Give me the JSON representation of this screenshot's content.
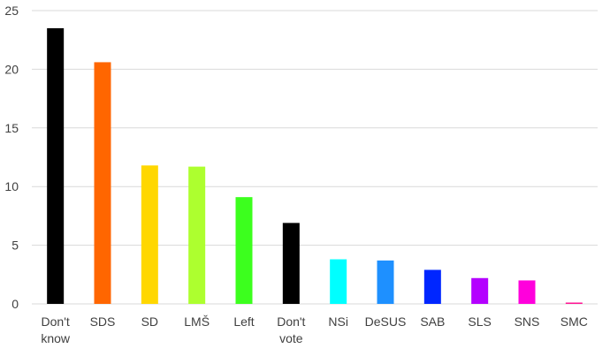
{
  "chart_data": {
    "type": "bar",
    "title": "",
    "xlabel": "",
    "ylabel": "",
    "categories": [
      [
        "Don't",
        "know"
      ],
      [
        "SDS"
      ],
      [
        "SD"
      ],
      [
        "LMŠ"
      ],
      [
        "Left"
      ],
      [
        "Don't",
        "vote"
      ],
      [
        "NSi"
      ],
      [
        "DeSUS"
      ],
      [
        "SAB"
      ],
      [
        "SLS"
      ],
      [
        "SNS"
      ],
      [
        "SMC"
      ]
    ],
    "values": [
      23.5,
      20.6,
      11.8,
      11.7,
      9.1,
      6.9,
      3.8,
      3.7,
      2.9,
      2.2,
      2.0,
      0.1
    ],
    "colors": [
      "#000000",
      "#ff6600",
      "#ffd700",
      "#adff2f",
      "#3cff1e",
      "#000000",
      "#00ffff",
      "#1e90ff",
      "#0026ff",
      "#b400ff",
      "#ff00dc",
      "#ff1493"
    ],
    "ylim": [
      0,
      25
    ],
    "yticks": [
      0,
      5,
      10,
      15,
      20,
      25
    ],
    "grid": true,
    "legend": "none"
  }
}
